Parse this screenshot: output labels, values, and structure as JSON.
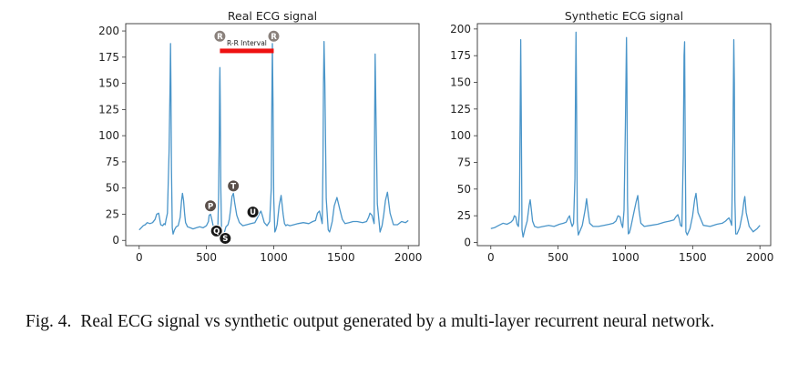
{
  "caption": {
    "label": "Fig. 4.",
    "text": "Real ECG signal vs synthetic output generated by a multi-layer recurrent neural network."
  },
  "chart_data": [
    {
      "type": "line",
      "title": "Real ECG signal",
      "xlabel": "",
      "ylabel": "",
      "xlim": [
        -100,
        2080
      ],
      "ylim": [
        -5,
        207
      ],
      "x_ticks": [
        0,
        500,
        1000,
        1500,
        2000
      ],
      "y_ticks": [
        0,
        25,
        50,
        75,
        100,
        125,
        150,
        175,
        200
      ],
      "grid": false,
      "line_color": "#4a95c9",
      "series": [
        {
          "x": [
            0,
            15,
            30,
            45,
            60,
            80,
            100,
            118,
            130,
            145,
            160,
            175,
            185,
            193,
            200,
            210,
            222,
            230,
            233,
            236,
            240,
            246,
            252,
            262,
            275,
            290,
            305,
            315,
            322,
            330,
            338,
            345,
            360,
            380,
            400,
            425,
            450,
            475,
            500,
            515,
            520,
            530,
            540,
            550,
            555,
            560,
            570,
            585,
            590,
            595,
            598,
            600,
            603,
            607,
            612,
            620,
            630,
            645,
            660,
            670,
            680,
            690,
            700,
            710,
            725,
            745,
            770,
            800,
            830,
            860,
            880,
            895,
            905,
            915,
            930,
            950,
            970,
            982,
            986,
            990,
            995,
            1000,
            1008,
            1015,
            1025,
            1040,
            1055,
            1070,
            1080,
            1090,
            1100,
            1120,
            1150,
            1180,
            1220,
            1260,
            1290,
            1310,
            1325,
            1340,
            1350,
            1360,
            1366,
            1370,
            1374,
            1380,
            1390,
            1405,
            1415,
            1425,
            1435,
            1450,
            1470,
            1490,
            1510,
            1530,
            1560,
            1590,
            1620,
            1660,
            1690,
            1705,
            1715,
            1730,
            1740,
            1746,
            1750,
            1754,
            1760,
            1770,
            1790,
            1805,
            1818,
            1830,
            1845,
            1865,
            1890,
            1920,
            1950,
            1980,
            2000
          ],
          "values": [
            10,
            12,
            14,
            15,
            17,
            16,
            17,
            20,
            25,
            26,
            15,
            14,
            16,
            15,
            20,
            26,
            85,
            150,
            188,
            150,
            70,
            12,
            6,
            10,
            13,
            14,
            22,
            38,
            45,
            38,
            25,
            17,
            13,
            12,
            11,
            12,
            13,
            12,
            14,
            18,
            24,
            25,
            20,
            14,
            8,
            10,
            13,
            15,
            40,
            100,
            150,
            165,
            130,
            50,
            10,
            3,
            6,
            13,
            15,
            20,
            30,
            42,
            45,
            36,
            24,
            17,
            14,
            15,
            16,
            17,
            22,
            26,
            28,
            24,
            17,
            14,
            18,
            50,
            130,
            188,
            130,
            40,
            8,
            10,
            15,
            33,
            43,
            25,
            16,
            14,
            15,
            14,
            15,
            16,
            17,
            16,
            18,
            19,
            26,
            28,
            22,
            16,
            70,
            150,
            190,
            150,
            40,
            10,
            8,
            13,
            18,
            33,
            41,
            30,
            20,
            16,
            17,
            18,
            18,
            17,
            18,
            22,
            26,
            24,
            19,
            16,
            120,
            178,
            120,
            35,
            8,
            14,
            25,
            38,
            46,
            26,
            15,
            15,
            18,
            17,
            19
          ]
        }
      ],
      "annotations": {
        "rr_interval": {
          "label": "R-R Interval",
          "x_start": 600,
          "x_end": 1000,
          "y": 181,
          "color": "#ee1111"
        },
        "markers": [
          {
            "label": "R",
            "x": 600,
            "y": 195,
            "fill": "#8a817c"
          },
          {
            "label": "R",
            "x": 1000,
            "y": 195,
            "fill": "#8a817c"
          },
          {
            "label": "P",
            "x": 530,
            "y": 33,
            "fill": "#5a4f4a"
          },
          {
            "label": "T",
            "x": 700,
            "y": 52,
            "fill": "#5a4f4a"
          },
          {
            "label": "U",
            "x": 845,
            "y": 27,
            "fill": "#181818"
          },
          {
            "label": "Q",
            "x": 575,
            "y": 9,
            "fill": "#181818"
          },
          {
            "label": "S",
            "x": 640,
            "y": 2,
            "fill": "#181818"
          }
        ]
      }
    },
    {
      "type": "line",
      "title": "Synthetic ECG signal",
      "xlabel": "",
      "ylabel": "",
      "xlim": [
        -100,
        2080
      ],
      "ylim": [
        -3,
        205
      ],
      "x_ticks": [
        0,
        500,
        1000,
        1500,
        2000
      ],
      "y_ticks": [
        0,
        25,
        50,
        75,
        100,
        125,
        150,
        175,
        200
      ],
      "grid": false,
      "line_color": "#4a95c9",
      "series": [
        {
          "x": [
            0,
            30,
            60,
            90,
            120,
            150,
            165,
            175,
            185,
            195,
            205,
            213,
            218,
            222,
            226,
            232,
            240,
            255,
            270,
            285,
            293,
            300,
            310,
            325,
            350,
            390,
            430,
            470,
            510,
            540,
            560,
            575,
            585,
            595,
            605,
            615,
            625,
            630,
            633,
            637,
            643,
            650,
            660,
            680,
            700,
            712,
            722,
            735,
            760,
            800,
            840,
            880,
            910,
            930,
            945,
            960,
            970,
            980,
            990,
            1000,
            1008,
            1012,
            1016,
            1022,
            1030,
            1040,
            1060,
            1080,
            1092,
            1102,
            1115,
            1140,
            1190,
            1240,
            1290,
            1330,
            1360,
            1375,
            1390,
            1400,
            1410,
            1420,
            1430,
            1436,
            1440,
            1444,
            1450,
            1460,
            1480,
            1500,
            1515,
            1525,
            1540,
            1580,
            1630,
            1680,
            1720,
            1745,
            1760,
            1770,
            1780,
            1790,
            1800,
            1806,
            1810,
            1814,
            1820,
            1830,
            1850,
            1870,
            1880,
            1888,
            1898,
            1920,
            1950,
            1980,
            2000
          ],
          "values": [
            13,
            14,
            16,
            18,
            17,
            19,
            21,
            25,
            24,
            17,
            15,
            30,
            120,
            190,
            120,
            12,
            5,
            13,
            20,
            35,
            40,
            32,
            20,
            15,
            14,
            15,
            16,
            15,
            17,
            18,
            19,
            23,
            25,
            19,
            15,
            18,
            60,
            150,
            197,
            130,
            20,
            7,
            10,
            16,
            30,
            41,
            30,
            18,
            15,
            15,
            16,
            17,
            18,
            20,
            25,
            24,
            18,
            14,
            30,
            110,
            192,
            150,
            40,
            8,
            9,
            14,
            26,
            38,
            44,
            30,
            18,
            15,
            16,
            17,
            19,
            20,
            21,
            24,
            26,
            22,
            16,
            15,
            80,
            175,
            188,
            100,
            10,
            7,
            13,
            25,
            40,
            46,
            28,
            16,
            15,
            17,
            18,
            20,
            22,
            23,
            20,
            16,
            100,
            190,
            150,
            40,
            8,
            8,
            14,
            27,
            38,
            43,
            28,
            15,
            10,
            13,
            16
          ]
        }
      ]
    }
  ]
}
